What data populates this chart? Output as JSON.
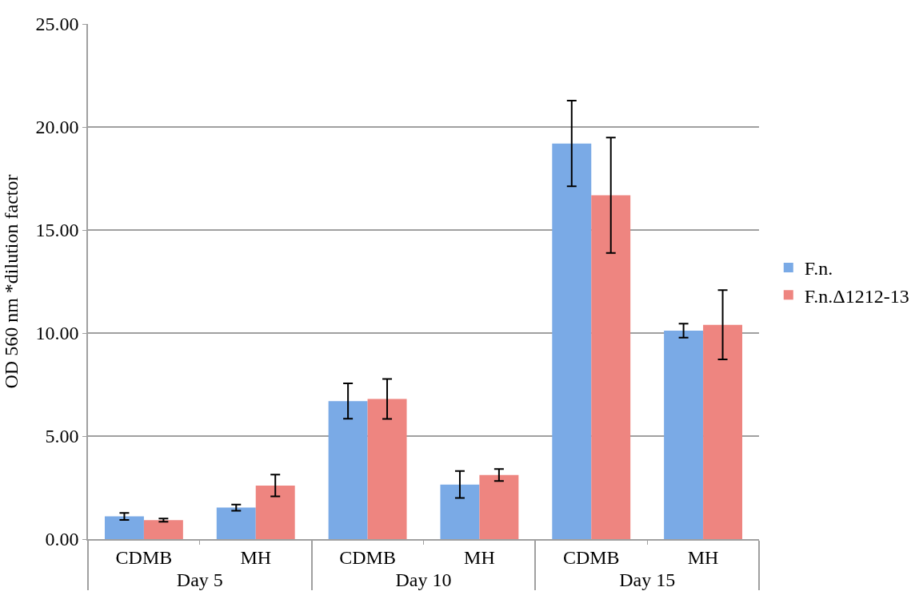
{
  "chart_data": {
    "type": "bar",
    "ylabel": "OD 560 nm *dilution factor",
    "categories": [
      "CDMB",
      "MH",
      "CDMB",
      "MH",
      "CDMB",
      "MH"
    ],
    "annotations": [
      "Day 5",
      "Day 10",
      "Day 15"
    ],
    "series": [
      {
        "name": "F.n.",
        "color": "#7aaae6",
        "values": [
          1.1,
          1.53,
          6.7,
          2.65,
          19.2,
          10.12
        ],
        "errors": [
          0.17,
          0.15,
          0.86,
          0.65,
          2.08,
          0.34
        ]
      },
      {
        "name": "F.n.Δ1212-13",
        "color": "#ee8580",
        "values": [
          0.92,
          2.6,
          6.8,
          3.11,
          16.69,
          10.4
        ],
        "errors": [
          0.08,
          0.53,
          0.97,
          0.29,
          2.8,
          1.68
        ]
      }
    ],
    "ylim": [
      0,
      25
    ],
    "yticks": [
      {
        "value": 0,
        "label": "0.00"
      },
      {
        "value": 5,
        "label": "5.00"
      },
      {
        "value": 10,
        "label": "10.00"
      },
      {
        "value": 15,
        "label": "15.00"
      },
      {
        "value": 20,
        "label": "20.00"
      },
      {
        "value": 25,
        "label": "25.00"
      }
    ],
    "grid": "y",
    "legend": "right"
  }
}
